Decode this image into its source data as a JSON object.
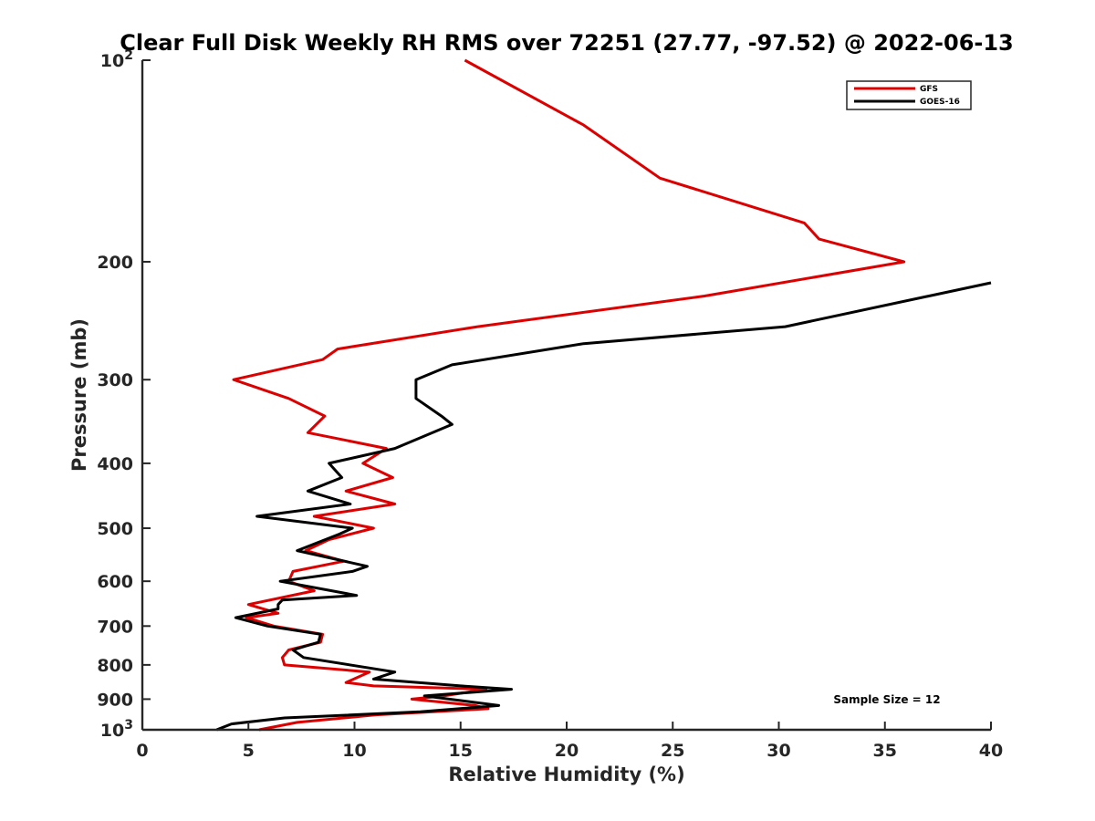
{
  "chart_data": {
    "type": "line",
    "title": "Clear Full Disk Weekly RH RMS over 72251 (27.77, -97.52) @ 2022-06-13",
    "xlabel": "Relative Humidity (%)",
    "ylabel": "Pressure (mb)",
    "xlim": [
      0,
      40
    ],
    "ylim": [
      100,
      1000
    ],
    "y_scale": "log",
    "y_reversed": true,
    "x_ticks": [
      0,
      5,
      10,
      15,
      20,
      25,
      30,
      35,
      40
    ],
    "x_tick_labels": [
      "0",
      "5",
      "10",
      "15",
      "20",
      "25",
      "30",
      "35",
      "40"
    ],
    "y_ticks": [
      100,
      200,
      300,
      400,
      500,
      600,
      700,
      800,
      900,
      1000
    ],
    "y_tick_labels": [
      {
        "base": "10",
        "exp": "2"
      },
      {
        "base": "200"
      },
      {
        "base": "300"
      },
      {
        "base": "400"
      },
      {
        "base": "500"
      },
      {
        "base": "600"
      },
      {
        "base": "700"
      },
      {
        "base": "800"
      },
      {
        "base": "900"
      },
      {
        "base": "10",
        "exp": "3"
      }
    ],
    "grid": false,
    "legend_position": "top-right",
    "annotation": "Sample Size = 12",
    "series": [
      {
        "name": "GFS",
        "color": "#dd0000",
        "points": [
          [
            15.2,
            100
          ],
          [
            20.8,
            125
          ],
          [
            24.4,
            150
          ],
          [
            31.2,
            175
          ],
          [
            31.9,
            185
          ],
          [
            35.9,
            200
          ],
          [
            26.5,
            225
          ],
          [
            15.8,
            250
          ],
          [
            9.2,
            270
          ],
          [
            8.5,
            280
          ],
          [
            4.3,
            300
          ],
          [
            6.9,
            320
          ],
          [
            8.6,
            340
          ],
          [
            7.8,
            360
          ],
          [
            11.5,
            380
          ],
          [
            10.4,
            400
          ],
          [
            11.8,
            420
          ],
          [
            9.6,
            440
          ],
          [
            11.9,
            460
          ],
          [
            8.1,
            480
          ],
          [
            10.9,
            500
          ],
          [
            8.8,
            520
          ],
          [
            7.7,
            540
          ],
          [
            9.5,
            560
          ],
          [
            7.1,
            580
          ],
          [
            6.9,
            600
          ],
          [
            8.1,
            620
          ],
          [
            5.0,
            650
          ],
          [
            6.4,
            670
          ],
          [
            4.9,
            680
          ],
          [
            6.2,
            700
          ],
          [
            8.5,
            720
          ],
          [
            8.4,
            740
          ],
          [
            6.9,
            760
          ],
          [
            6.6,
            780
          ],
          [
            6.7,
            800
          ],
          [
            10.7,
            820
          ],
          [
            9.6,
            850
          ],
          [
            10.9,
            860
          ],
          [
            16.2,
            870
          ],
          [
            14.2,
            890
          ],
          [
            12.7,
            900
          ],
          [
            15.7,
            920
          ],
          [
            16.3,
            930
          ],
          [
            11.0,
            950
          ],
          [
            7.3,
            975
          ],
          [
            5.5,
            1000
          ]
        ]
      },
      {
        "name": "GOES-16",
        "color": "#000000",
        "points": [
          [
            40.0,
            215
          ],
          [
            30.3,
            250
          ],
          [
            20.8,
            265
          ],
          [
            14.6,
            285
          ],
          [
            12.9,
            300
          ],
          [
            12.9,
            320
          ],
          [
            14.1,
            340
          ],
          [
            14.6,
            350
          ],
          [
            11.9,
            380
          ],
          [
            8.8,
            400
          ],
          [
            9.4,
            420
          ],
          [
            7.8,
            440
          ],
          [
            9.8,
            460
          ],
          [
            5.4,
            480
          ],
          [
            9.9,
            500
          ],
          [
            9.3,
            510
          ],
          [
            7.3,
            540
          ],
          [
            10.6,
            570
          ],
          [
            9.9,
            580
          ],
          [
            6.5,
            600
          ],
          [
            10.1,
            630
          ],
          [
            6.6,
            640
          ],
          [
            6.4,
            650
          ],
          [
            6.4,
            660
          ],
          [
            4.4,
            680
          ],
          [
            5.9,
            700
          ],
          [
            8.4,
            720
          ],
          [
            8.3,
            740
          ],
          [
            7.1,
            760
          ],
          [
            7.6,
            780
          ],
          [
            11.9,
            820
          ],
          [
            10.9,
            840
          ],
          [
            15.0,
            860
          ],
          [
            17.4,
            870
          ],
          [
            13.3,
            890
          ],
          [
            16.8,
            920
          ],
          [
            13.1,
            940
          ],
          [
            6.7,
            960
          ],
          [
            4.2,
            980
          ],
          [
            3.5,
            1000
          ]
        ]
      }
    ]
  }
}
